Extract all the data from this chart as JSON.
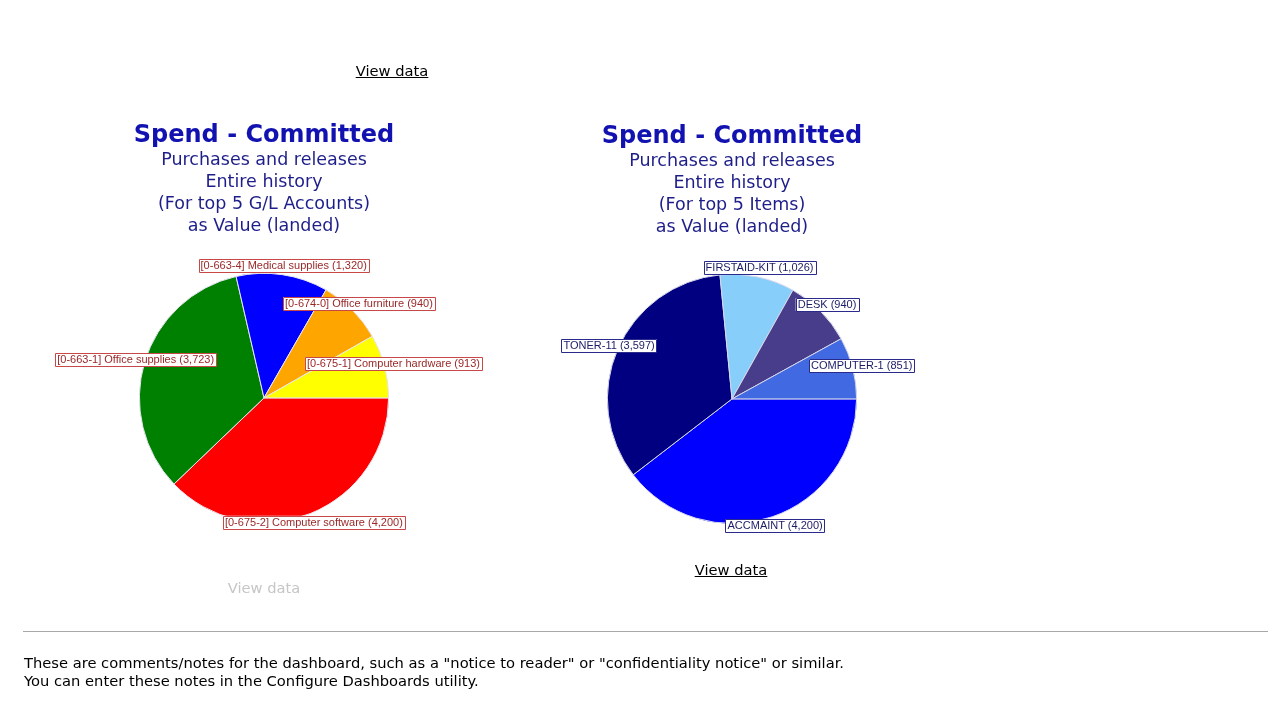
{
  "chart_data": [
    {
      "type": "pie",
      "title": "Spend - Committed",
      "subtitle": "Purchases and releases\nEntire history\n(For top 5 G/L Accounts)\nas Value (landed)",
      "categories": [
        "[0-675-2] Computer software",
        "[0-663-1] Office supplies",
        "[0-663-4] Medical supplies",
        "[0-674-0] Office furniture",
        "[0-675-1] Computer hardware"
      ],
      "values": [
        4200,
        3723,
        1320,
        940,
        913
      ],
      "value_labels": [
        "(4,200)",
        "(3,723)",
        "(1,320)",
        "(940)",
        "(913)"
      ],
      "colors": [
        "#ff0000",
        "#008000",
        "#0000ff",
        "#ffa500",
        "#ffff00"
      ],
      "annotations": [
        "View data",
        "View data"
      ]
    },
    {
      "type": "pie",
      "title": "Spend - Committed",
      "subtitle": "Purchases and releases\nEntire history\n(For top 5 Items)\nas Value (landed)",
      "categories": [
        "ACCMAINT",
        "TONER-11",
        "FIRSTAID-KIT",
        "DESK",
        "COMPUTER-1"
      ],
      "values": [
        4200,
        3597,
        1026,
        940,
        851
      ],
      "value_labels": [
        "(4,200)",
        "(3,597)",
        "(1,026)",
        "(940)",
        "(851)"
      ],
      "colors": [
        "#0000ff",
        "#000080",
        "#87cefa",
        "#483d8b",
        "#4169e1"
      ],
      "annotations": [
        "View data",
        "These are comments/notes for the dashboard, such as a \"notice to reader\" or \"confidentiality notice\" or similar.",
        "You can enter these notes in the Configure Dashboards utility."
      ]
    }
  ]
}
